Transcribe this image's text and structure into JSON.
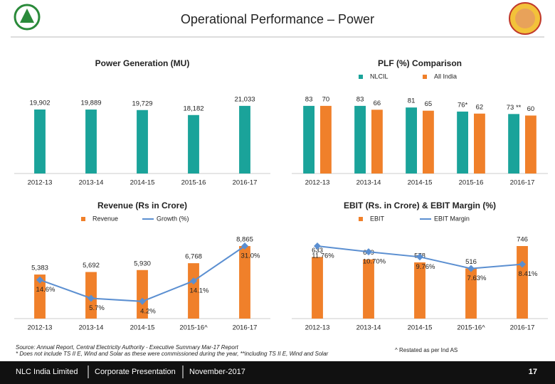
{
  "slide": {
    "title": "Operational Performance – Power",
    "source_note": "Source: Annual Report, Central Electricity Authority - Executive Summary Mar-17 Report",
    "footnote": "* Does not include TS II E, Wind and Solar as these were commissioned during the year, **including TS II E, Wind and Solar",
    "restated_note": "^ Restated as per Ind AS",
    "footer_company": "NLC India Limited",
    "footer_doc": "Corporate Presentation",
    "footer_date": "November-2017",
    "page_number": "17"
  },
  "chart_data": [
    {
      "type": "bar",
      "title": "Power Generation (MU)",
      "categories": [
        "2012-13",
        "2013-14",
        "2014-15",
        "2015-16",
        "2016-17"
      ],
      "values": [
        19902,
        19889,
        19729,
        18182,
        21033
      ],
      "value_labels": [
        "19,902",
        "19,889",
        "19,729",
        "18,182",
        "21,033"
      ],
      "color": "#1aa39a"
    },
    {
      "type": "bar",
      "title": "PLF (%) Comparison",
      "categories": [
        "2012-13",
        "2013-14",
        "2014-15",
        "2015-16",
        "2016-17"
      ],
      "series": [
        {
          "name": "NLCIL",
          "color": "#1aa39a",
          "values": [
            83,
            83,
            81,
            76,
            73
          ],
          "value_labels": [
            "83",
            "83",
            "81",
            "76*",
            "73 **"
          ]
        },
        {
          "name": "All India",
          "color": "#f0802a",
          "values": [
            70,
            66,
            65,
            62,
            60
          ]
        }
      ],
      "legend": "top"
    },
    {
      "type": "combo",
      "title": "Revenue (Rs in Crore)",
      "categories": [
        "2012-13",
        "2013-14",
        "2014-15",
        "2015-16^",
        "2016-17"
      ],
      "series": [
        {
          "name": "Revenue",
          "type": "bar",
          "color": "#f0802a",
          "values": [
            5383,
            5692,
            5930,
            6768,
            8865
          ],
          "value_labels": [
            "5,383",
            "5,692",
            "5,930",
            "6,768",
            "8,865"
          ]
        },
        {
          "name": "Growth (%)",
          "type": "line",
          "color": "#5b8fd1",
          "values": [
            14.6,
            5.7,
            4.2,
            14.1,
            31.0
          ],
          "value_labels": [
            "14.6%",
            "5.7%",
            "4.2%",
            "14.1%",
            "31.0%"
          ]
        }
      ],
      "legend": "top"
    },
    {
      "type": "combo",
      "title": "EBIT (Rs. in Crore) & EBIT Margin (%)",
      "categories": [
        "2012-13",
        "2013-14",
        "2014-15",
        "2015-16^",
        "2016-17"
      ],
      "series": [
        {
          "name": "EBIT",
          "type": "bar",
          "color": "#f0802a",
          "values": [
            633,
            609,
            578,
            516,
            746
          ]
        },
        {
          "name": "EBIT Margin",
          "type": "line",
          "color": "#5b8fd1",
          "values": [
            11.76,
            10.7,
            9.76,
            7.63,
            8.41
          ],
          "value_labels": [
            "11.76%",
            "10.70%",
            "9.76%",
            "7.63%",
            "8.41%"
          ]
        }
      ],
      "legend": "top"
    }
  ]
}
